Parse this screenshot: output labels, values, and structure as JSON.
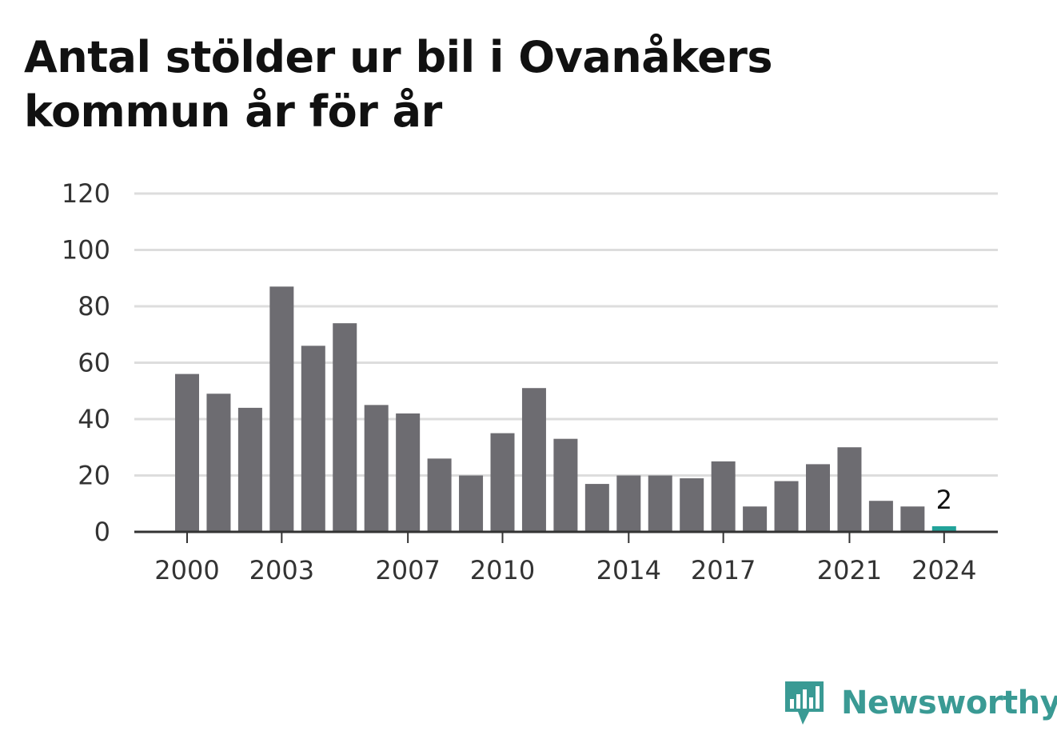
{
  "title": "Antal stölder ur bil i Ovanåkers kommun år för år",
  "brand": {
    "name": "Newsworthy"
  },
  "colors": {
    "bar": "#6d6c71",
    "highlight": "#22a39a",
    "grid": "#dddddd",
    "axis": "#333333",
    "brand": "#3a9a94"
  },
  "chart_data": {
    "type": "bar",
    "title": "Antal stölder ur bil i Ovanåkers kommun år för år",
    "xlabel": "",
    "ylabel": "",
    "categories": [
      "2000",
      "2001",
      "2002",
      "2003",
      "2004",
      "2005",
      "2006",
      "2007",
      "2008",
      "2009",
      "2010",
      "2011",
      "2012",
      "2013",
      "2014",
      "2015",
      "2016",
      "2017",
      "2018",
      "2019",
      "2020",
      "2021",
      "2022",
      "2023",
      "2024"
    ],
    "values": [
      56,
      49,
      44,
      87,
      66,
      74,
      45,
      42,
      26,
      20,
      35,
      51,
      33,
      17,
      20,
      20,
      19,
      25,
      9,
      18,
      24,
      30,
      11,
      9,
      2
    ],
    "ylim": [
      0,
      120
    ],
    "yticks": [
      "0",
      "20",
      "40",
      "60",
      "80",
      "100",
      "120"
    ],
    "xticks": [
      "2000",
      "2003",
      "2007",
      "2010",
      "2014",
      "2017",
      "2021",
      "2024"
    ],
    "highlight_category": "2024",
    "data_labels": [
      {
        "category": "2024",
        "text": "2"
      }
    ],
    "grid": true,
    "legend": "none"
  }
}
